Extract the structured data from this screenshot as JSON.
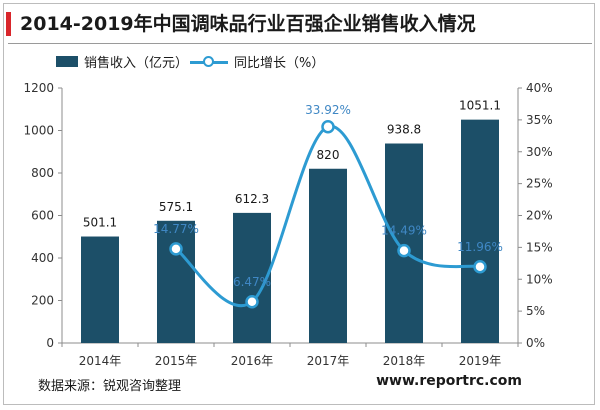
{
  "title": "2014-2019年中国调味品行业百强企业销售收入情况",
  "source": "数据来源：锐观咨询整理",
  "website": "www.reportrc.com",
  "colors": {
    "bar": "#1c4f68",
    "line": "#2d9bd2",
    "title_accent": "#d9262b"
  },
  "chart_data": {
    "type": "bar",
    "title": "2014-2019年中国调味品行业百强企业销售收入情况",
    "categories": [
      "2014年",
      "2015年",
      "2016年",
      "2017年",
      "2018年",
      "2019年"
    ],
    "series": [
      {
        "name": "销售收入（亿元）",
        "type": "bar",
        "axis": "left",
        "values": [
          501.1,
          575.1,
          612.3,
          820,
          938.8,
          1051.1
        ],
        "labels": [
          "501.1",
          "575.1",
          "612.3",
          "820",
          "938.8",
          "1051.1"
        ]
      },
      {
        "name": "同比增长（%）",
        "type": "line",
        "axis": "right",
        "values": [
          null,
          14.77,
          6.47,
          33.92,
          14.49,
          11.96
        ],
        "labels": [
          "",
          "14.77%",
          "6.47%",
          "33.92%",
          "14.49%",
          "11.96%"
        ]
      }
    ],
    "ylim_left": [
      0,
      1200
    ],
    "yticks_left": [
      "0",
      "200",
      "400",
      "600",
      "800",
      "1000",
      "1200"
    ],
    "ylim_right": [
      0,
      40
    ],
    "yticks_right": [
      "0%",
      "5%",
      "10%",
      "15%",
      "20%",
      "25%",
      "30%",
      "35%",
      "40%"
    ],
    "grid": false,
    "legend_position": "top-left"
  }
}
